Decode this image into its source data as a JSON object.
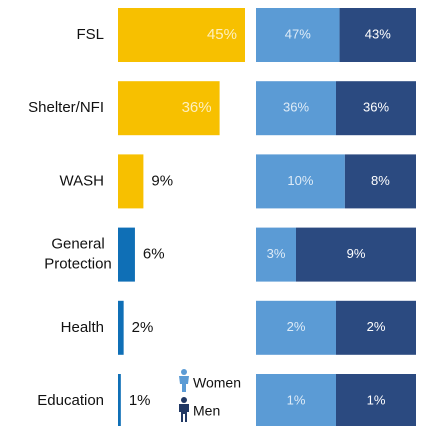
{
  "chart_data": [
    {
      "type": "hbar",
      "categories": [
        "FSL",
        "Shelter/NFI",
        "WASH",
        "General Protection",
        "Health",
        "Education"
      ],
      "values": [
        45,
        36,
        9,
        6,
        2,
        1
      ],
      "value_labels": [
        "45%",
        "36%",
        "9%",
        "6%",
        "2%",
        "1%"
      ],
      "colors": [
        "#f7c000",
        "#f7c000",
        "#f7c000",
        "#0f6fb6",
        "#0f6fb6",
        "#0f6fb6"
      ],
      "xlim": [
        0,
        45
      ]
    },
    {
      "type": "stacked-hbar",
      "series": [
        {
          "name": "Women",
          "color": "#5b9bd5",
          "values": [
            47,
            36,
            10,
            3,
            2,
            1
          ],
          "value_labels": [
            "47%",
            "36%",
            "10%",
            "3%",
            "2%",
            "1%"
          ]
        },
        {
          "name": "Men",
          "color": "#2b4a80",
          "values": [
            43,
            36,
            8,
            9,
            2,
            1
          ],
          "value_labels": [
            "43%",
            "36%",
            "8%",
            "9%",
            "2%",
            "1%"
          ]
        }
      ]
    }
  ]
}
